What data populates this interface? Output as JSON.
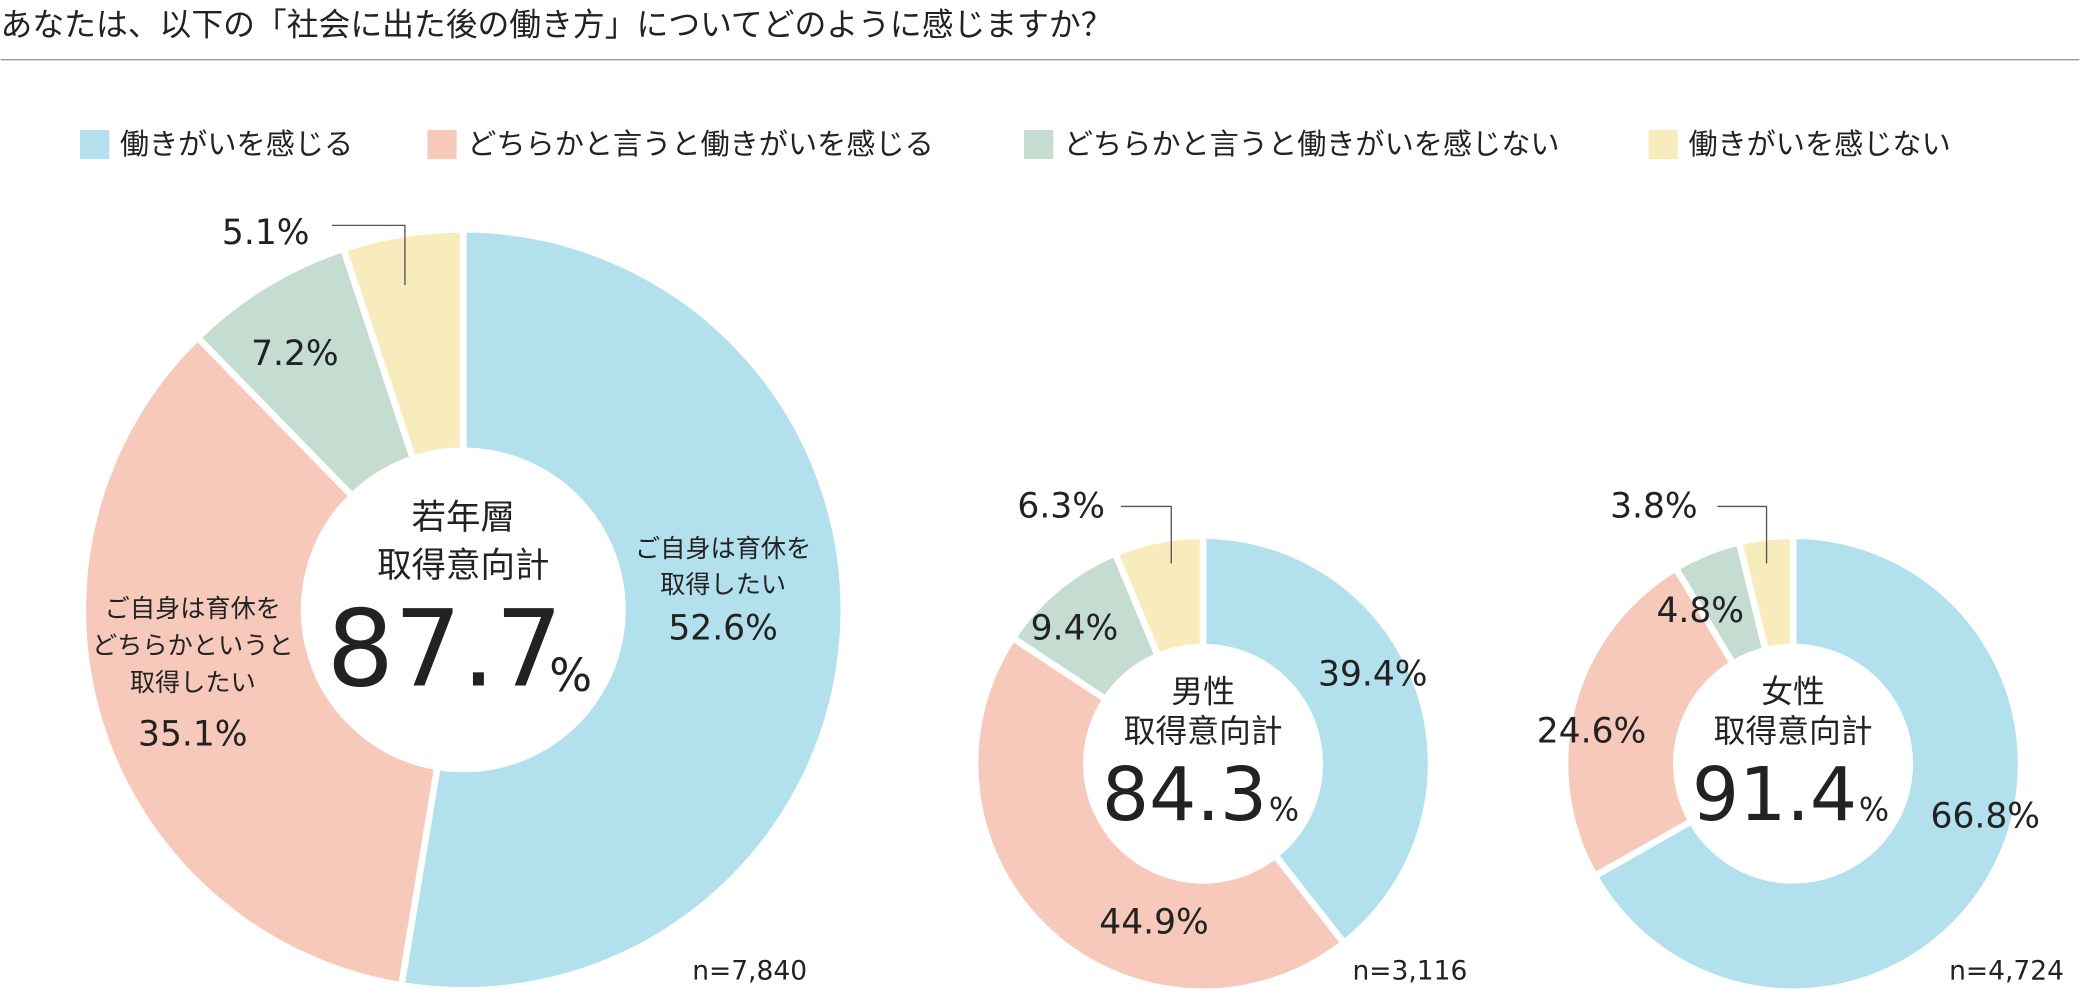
{
  "title": "あなたは、以下の「社会に出た後の働き方」についてどのように感じますか？",
  "chart_data": [
    {
      "type": "donut",
      "categories": [
        "働きがいを感じる",
        "どちらかと言うと働きがいを感じる",
        "どちらかと言うと働きがいを感じない",
        "働きがいを感じない"
      ],
      "colors": [
        "#b3e0ed",
        "#f6c9bb",
        "#c5ddd0",
        "#f8ecbd"
      ],
      "values": [
        52.6,
        35.1,
        7.2,
        5.1
      ],
      "value_labels": [
        "52.6%",
        "35.1%",
        "7.2%",
        "5.1%"
      ],
      "label_notes": [
        [
          "ご自身は育休を",
          "取得したい"
        ],
        [
          "ご自身は育休を",
          "どちらかというと",
          "取得したい"
        ]
      ],
      "center_label": [
        "若年層",
        "取得意向計"
      ],
      "center_value": 87.7,
      "center_unit": "%",
      "n_label": "n=7,840",
      "legend": "top"
    },
    {
      "type": "donut",
      "categories": [
        "働きがいを感じる",
        "どちらかと言うと働きがいを感じる",
        "どちらかと言うと働きがいを感じない",
        "働きがいを感じない"
      ],
      "colors": [
        "#b3e0ed",
        "#f6c9bb",
        "#c5ddd0",
        "#f8ecbd"
      ],
      "values": [
        39.4,
        44.9,
        9.4,
        6.3
      ],
      "value_labels": [
        "39.4%",
        "44.9%",
        "9.4%",
        "6.3%"
      ],
      "center_label": [
        "男性",
        "取得意向計"
      ],
      "center_value": 84.3,
      "center_unit": "%",
      "n_label": "n=3,116"
    },
    {
      "type": "donut",
      "categories": [
        "働きがいを感じる",
        "どちらかと言うと働きがいを感じる",
        "どちらかと言うと働きがいを感じない",
        "働きがいを感じない"
      ],
      "colors": [
        "#b3e0ed",
        "#f6c9bb",
        "#c5ddd0",
        "#f8ecbd"
      ],
      "values": [
        66.8,
        24.6,
        4.8,
        3.8
      ],
      "value_labels": [
        "66.8%",
        "24.6%",
        "4.8%",
        "3.8%"
      ],
      "center_label": [
        "女性",
        "取得意向計"
      ],
      "center_value": 91.4,
      "center_unit": "%",
      "n_label": "n=4,724"
    }
  ]
}
